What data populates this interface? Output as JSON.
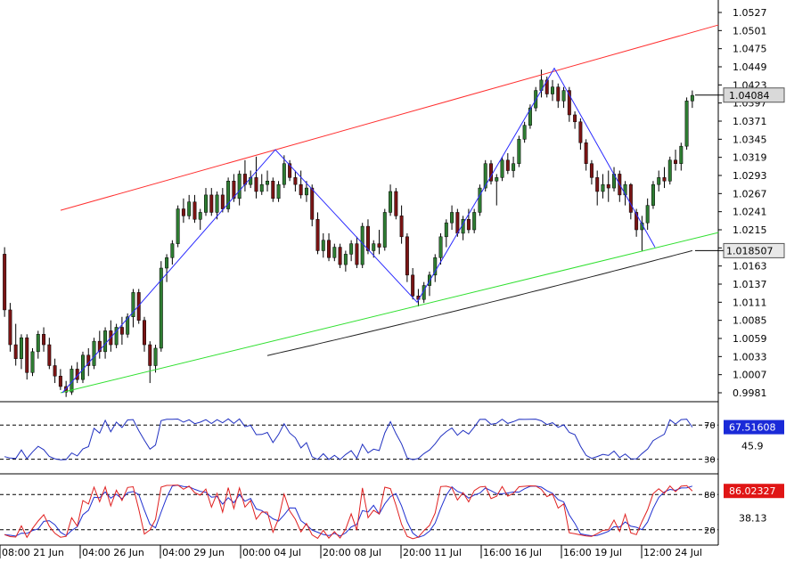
{
  "chart_data": {
    "type": "candlestick",
    "price_axis": {
      "ticks": [
        "1.0527",
        "1.0501",
        "1.0475",
        "1.0449",
        "1.0423",
        "1.0397",
        "1.0371",
        "1.0345",
        "1.0319",
        "1.0293",
        "1.0267",
        "1.0241",
        "1.0215",
        "1.0189",
        "1.0163",
        "1.0137",
        "1.0111",
        "1.0085",
        "1.0059",
        "1.0033",
        "1.0007",
        "0.9981"
      ],
      "ylim": [
        0.9969,
        1.054
      ],
      "current_price_label": "1.04084",
      "current_price": 1.04084,
      "ma_label": "1.018507",
      "ma_value": 1.018507
    },
    "time_axis_labels": [
      "08:00 21 Jun",
      "04:00 26 Jun",
      "04:00 29 Jun",
      "00:00 04 Jul",
      "20:00 08 Jul",
      "20:00 11 Jul",
      "16:00 16 Jul",
      "16:00 19 Jul",
      "12:00 24 Jul"
    ],
    "candles": [
      [
        1.018,
        1.019,
        1.009,
        1.01
      ],
      [
        1.01,
        1.011,
        1.004,
        1.005
      ],
      [
        1.005,
        1.008,
        1.002,
        1.003
      ],
      [
        1.003,
        1.0065,
        1.0015,
        1.006
      ],
      [
        1.006,
        1.0065,
        1.0,
        1.001
      ],
      [
        1.001,
        1.0045,
        1.0005,
        1.004
      ],
      [
        1.004,
        1.007,
        1.003,
        1.0065
      ],
      [
        1.0065,
        1.0075,
        1.004,
        1.005
      ],
      [
        1.005,
        1.006,
        1.0015,
        1.002
      ],
      [
        1.002,
        1.003,
        0.9995,
        1.0005
      ],
      [
        1.0005,
        1.0015,
        0.9985,
        0.999
      ],
      [
        0.999,
        0.9998,
        0.9975,
        0.9982
      ],
      [
        0.9982,
        1.002,
        0.9978,
        1.0015
      ],
      [
        1.0015,
        1.0025,
        0.9995,
        1.0
      ],
      [
        1.0,
        1.004,
        0.9995,
        1.0035
      ],
      [
        1.0035,
        1.0045,
        1.0005,
        1.002
      ],
      [
        1.002,
        1.006,
        1.0015,
        1.0055
      ],
      [
        1.0055,
        1.007,
        1.003,
        1.004
      ],
      [
        1.004,
        1.0075,
        1.003,
        1.007
      ],
      [
        1.007,
        1.0085,
        1.004,
        1.005
      ],
      [
        1.005,
        1.008,
        1.0045,
        1.0075
      ],
      [
        1.0075,
        1.009,
        1.005,
        1.0065
      ],
      [
        1.0065,
        1.0095,
        1.006,
        1.009
      ],
      [
        1.009,
        1.013,
        1.0075,
        1.0125
      ],
      [
        1.0125,
        1.013,
        1.008,
        1.0085
      ],
      [
        1.0085,
        1.009,
        1.004,
        1.005
      ],
      [
        1.005,
        1.0055,
        0.9995,
        1.002
      ],
      [
        1.002,
        1.005,
        1.001,
        1.0045
      ],
      [
        1.0045,
        1.017,
        1.004,
        1.016
      ],
      [
        1.016,
        1.018,
        1.014,
        1.0175
      ],
      [
        1.0175,
        1.02,
        1.0165,
        1.0195
      ],
      [
        1.0195,
        1.025,
        1.019,
        1.0245
      ],
      [
        1.0245,
        1.026,
        1.0225,
        1.0235
      ],
      [
        1.0235,
        1.0265,
        1.023,
        1.0255
      ],
      [
        1.0255,
        1.0265,
        1.0225,
        1.023
      ],
      [
        1.023,
        1.0245,
        1.0215,
        1.024
      ],
      [
        1.024,
        1.0275,
        1.0235,
        1.0265
      ],
      [
        1.0265,
        1.0275,
        1.0235,
        1.024
      ],
      [
        1.024,
        1.027,
        1.023,
        1.0265
      ],
      [
        1.0265,
        1.0275,
        1.024,
        1.0245
      ],
      [
        1.0245,
        1.029,
        1.024,
        1.0285
      ],
      [
        1.0285,
        1.0295,
        1.0255,
        1.026
      ],
      [
        1.026,
        1.03,
        1.025,
        1.0295
      ],
      [
        1.0295,
        1.0315,
        1.027,
        1.028
      ],
      [
        1.028,
        1.03,
        1.0275,
        1.029
      ],
      [
        1.029,
        1.032,
        1.026,
        1.027
      ],
      [
        1.027,
        1.0295,
        1.0265,
        1.028
      ],
      [
        1.028,
        1.03,
        1.027,
        1.0285
      ],
      [
        1.0285,
        1.029,
        1.0255,
        1.026
      ],
      [
        1.026,
        1.0285,
        1.0255,
        1.028
      ],
      [
        1.028,
        1.0322,
        1.0275,
        1.031
      ],
      [
        1.031,
        1.0315,
        1.0285,
        1.029
      ],
      [
        1.029,
        1.03,
        1.027,
        1.028
      ],
      [
        1.028,
        1.03,
        1.026,
        1.0265
      ],
      [
        1.0265,
        1.0285,
        1.0255,
        1.0275
      ],
      [
        1.0275,
        1.028,
        1.022,
        1.023
      ],
      [
        1.023,
        1.024,
        1.018,
        1.0185
      ],
      [
        1.0185,
        1.021,
        1.0175,
        1.02
      ],
      [
        1.02,
        1.021,
        1.017,
        1.0175
      ],
      [
        1.0175,
        1.0195,
        1.017,
        1.019
      ],
      [
        1.019,
        1.0195,
        1.016,
        1.0165
      ],
      [
        1.0165,
        1.0185,
        1.0155,
        1.018
      ],
      [
        1.018,
        1.02,
        1.017,
        1.0195
      ],
      [
        1.0195,
        1.0205,
        1.016,
        1.0165
      ],
      [
        1.0165,
        1.0225,
        1.016,
        1.022
      ],
      [
        1.022,
        1.023,
        1.018,
        1.0185
      ],
      [
        1.0185,
        1.02,
        1.0175,
        1.0195
      ],
      [
        1.0195,
        1.0215,
        1.018,
        1.019
      ],
      [
        1.019,
        1.0245,
        1.0185,
        1.024
      ],
      [
        1.024,
        1.028,
        1.0235,
        1.027
      ],
      [
        1.027,
        1.0275,
        1.023,
        1.0235
      ],
      [
        1.0235,
        1.025,
        1.0195,
        1.0205
      ],
      [
        1.0205,
        1.021,
        1.014,
        1.015
      ],
      [
        1.015,
        1.016,
        1.0115,
        1.012
      ],
      [
        1.012,
        1.013,
        1.0105,
        1.0115
      ],
      [
        1.0115,
        1.014,
        1.011,
        1.0135
      ],
      [
        1.0135,
        1.0155,
        1.012,
        1.015
      ],
      [
        1.015,
        1.018,
        1.014,
        1.0175
      ],
      [
        1.0175,
        1.021,
        1.0165,
        1.0205
      ],
      [
        1.0205,
        1.023,
        1.019,
        1.0225
      ],
      [
        1.0225,
        1.025,
        1.0215,
        1.024
      ],
      [
        1.024,
        1.0245,
        1.0205,
        1.021
      ],
      [
        1.021,
        1.0235,
        1.02,
        1.023
      ],
      [
        1.023,
        1.0245,
        1.021,
        1.0215
      ],
      [
        1.0215,
        1.0245,
        1.021,
        1.024
      ],
      [
        1.024,
        1.028,
        1.0235,
        1.0275
      ],
      [
        1.0275,
        1.0315,
        1.027,
        1.031
      ],
      [
        1.031,
        1.0315,
        1.028,
        1.0285
      ],
      [
        1.0285,
        1.0295,
        1.025,
        1.029
      ],
      [
        1.029,
        1.032,
        1.0285,
        1.0315
      ],
      [
        1.0315,
        1.0325,
        1.0295,
        1.03
      ],
      [
        1.03,
        1.032,
        1.029,
        1.031
      ],
      [
        1.031,
        1.035,
        1.0305,
        1.0345
      ],
      [
        1.0345,
        1.037,
        1.034,
        1.0365
      ],
      [
        1.0365,
        1.0395,
        1.036,
        1.039
      ],
      [
        1.039,
        1.042,
        1.0385,
        1.0415
      ],
      [
        1.0415,
        1.0445,
        1.0405,
        1.043
      ],
      [
        1.043,
        1.0435,
        1.0405,
        1.041
      ],
      [
        1.041,
        1.043,
        1.04,
        1.042
      ],
      [
        1.042,
        1.0425,
        1.039,
        1.04
      ],
      [
        1.04,
        1.042,
        1.039,
        1.0415
      ],
      [
        1.0415,
        1.042,
        1.037,
        1.038
      ],
      [
        1.038,
        1.0385,
        1.036,
        1.037
      ],
      [
        1.037,
        1.0375,
        1.033,
        1.034
      ],
      [
        1.034,
        1.0345,
        1.03,
        1.031
      ],
      [
        1.031,
        1.0315,
        1.028,
        1.029
      ],
      [
        1.029,
        1.03,
        1.025,
        1.027
      ],
      [
        1.027,
        1.0295,
        1.026,
        1.028
      ],
      [
        1.028,
        1.03,
        1.0255,
        1.0275
      ],
      [
        1.0275,
        1.0305,
        1.027,
        1.0295
      ],
      [
        1.0295,
        1.03,
        1.0255,
        1.0265
      ],
      [
        1.0265,
        1.0285,
        1.025,
        1.028
      ],
      [
        1.028,
        1.0282,
        1.023,
        1.024
      ],
      [
        1.024,
        1.0245,
        1.0205,
        1.0215
      ],
      [
        1.0215,
        1.0235,
        1.0185,
        1.0225
      ],
      [
        1.0225,
        1.026,
        1.0215,
        1.025
      ],
      [
        1.025,
        1.0285,
        1.0245,
        1.028
      ],
      [
        1.028,
        1.03,
        1.027,
        1.029
      ],
      [
        1.029,
        1.0305,
        1.0275,
        1.0285
      ],
      [
        1.0285,
        1.032,
        1.028,
        1.0315
      ],
      [
        1.0315,
        1.033,
        1.03,
        1.031
      ],
      [
        1.031,
        1.034,
        1.03,
        1.0335
      ],
      [
        1.0335,
        1.0405,
        1.033,
        1.04
      ],
      [
        1.04,
        1.0415,
        1.039,
        1.0408
      ]
    ],
    "fib_zigzag_points": [
      [
        0.9981,
        0
      ],
      [
        1.033,
        1
      ],
      [
        1.0111,
        2
      ],
      [
        1.0447,
        3
      ],
      [
        1.019,
        4
      ]
    ],
    "indicators": {
      "rsi": {
        "current_label": "67.51608",
        "current": 67.51608,
        "levels": [
          "70",
          "30"
        ],
        "midline_label": "45.9"
      },
      "stochastic": {
        "current_label": "86.02327",
        "current": 86.02327,
        "levels": [
          "80",
          "20"
        ],
        "midline_label": "38.13"
      }
    },
    "colors": {
      "bull": "#2e7d32",
      "bear": "#7a1414",
      "resistance": "#ff3030",
      "support": "#30e030",
      "zigzag": "#2a2aff",
      "ma": "#222222",
      "rsi": "#2030c0",
      "stoch_k": "#e02020",
      "stoch_d": "#2030d0",
      "rsi_badge": "#1a2ad8",
      "stoch_badge": "#e01515"
    }
  }
}
